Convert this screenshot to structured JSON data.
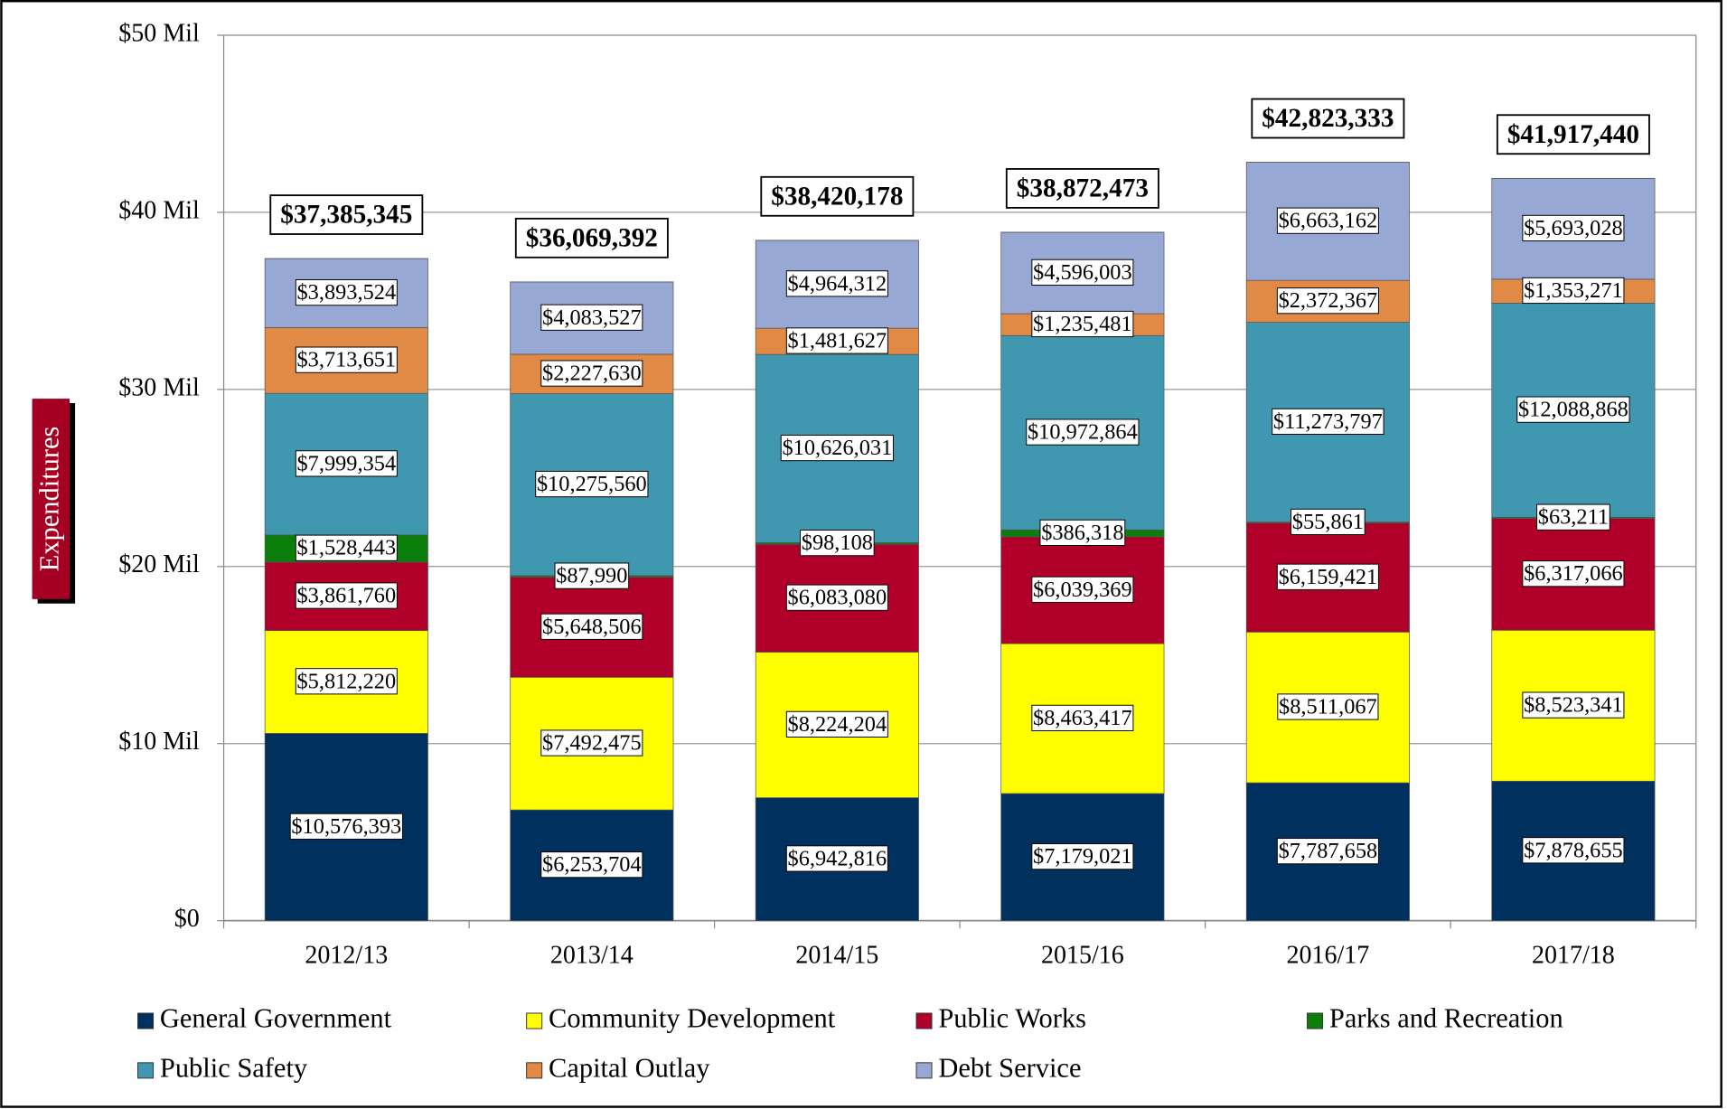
{
  "chart_data": {
    "type": "stacked_bar",
    "y_label": "Expenditures",
    "categories": [
      "2012/13",
      "2013/14",
      "2014/15",
      "2015/16",
      "2016/17",
      "2017/18"
    ],
    "ylim": [
      0,
      50000000
    ],
    "yticks": [
      {
        "value": 0,
        "label": "$0"
      },
      {
        "value": 10000000,
        "label": "$10 Mil"
      },
      {
        "value": 20000000,
        "label": "$20 Mil"
      },
      {
        "value": 30000000,
        "label": "$30 Mil"
      },
      {
        "value": 40000000,
        "label": "$40 Mil"
      },
      {
        "value": 50000000,
        "label": "$50 Mil"
      }
    ],
    "grid": true,
    "legend": "bottom",
    "series": [
      {
        "name": "General Government",
        "color": "#00305e",
        "values": [
          10576393,
          6253704,
          6942816,
          7179021,
          7787658,
          7878655
        ],
        "value_labels": [
          "$10,576,393",
          "$6,253,704",
          "$6,942,816",
          "$7,179,021",
          "$7,787,658",
          "$7,878,655"
        ]
      },
      {
        "name": "Community Development",
        "color": "#ffff00",
        "values": [
          5812220,
          7492475,
          8224204,
          8463417,
          8511067,
          8523341
        ],
        "value_labels": [
          "$5,812,220",
          "$7,492,475",
          "$8,224,204",
          "$8,463,417",
          "$8,511,067",
          "$8,523,341"
        ]
      },
      {
        "name": "Public Works",
        "color": "#b0002a",
        "values": [
          3861760,
          5648506,
          6083080,
          6039369,
          6159421,
          6317066
        ],
        "value_labels": [
          "$3,861,760",
          "$5,648,506",
          "$6,083,080",
          "$6,039,369",
          "$6,159,421",
          "$6,317,066"
        ]
      },
      {
        "name": "Parks and Recreation",
        "color": "#0a7d0a",
        "values": [
          1528443,
          87990,
          98108,
          386318,
          55861,
          63211
        ],
        "value_labels": [
          "$1,528,443",
          "$87,990",
          "$98,108",
          "$386,318",
          "$55,861",
          "$63,211"
        ]
      },
      {
        "name": "Public Safety",
        "color": "#3f97b0",
        "values": [
          7999354,
          10275560,
          10626031,
          10972864,
          11273797,
          12088868
        ],
        "value_labels": [
          "$7,999,354",
          "$10,275,560",
          "$10,626,031",
          "$10,972,864",
          "$11,273,797",
          "$12,088,868"
        ]
      },
      {
        "name": "Capital Outlay",
        "color": "#e08a45",
        "values": [
          3713651,
          2227630,
          1481627,
          1235481,
          2372367,
          1353271
        ],
        "value_labels": [
          "$3,713,651",
          "$2,227,630",
          "$1,481,627",
          "$1,235,481",
          "$2,372,367",
          "$1,353,271"
        ]
      },
      {
        "name": "Debt Service",
        "color": "#97a8d4",
        "values": [
          3893524,
          4083527,
          4964312,
          4596003,
          6663162,
          5693028
        ],
        "value_labels": [
          "$3,893,524",
          "$4,083,527",
          "$4,964,312",
          "$4,596,003",
          "$6,663,162",
          "$5,693,028"
        ]
      }
    ],
    "totals": [
      37385345,
      36069392,
      38420178,
      38872473,
      42823333,
      41917440
    ],
    "total_labels": [
      "$37,385,345",
      "$36,069,392",
      "$38,420,178",
      "$38,872,473",
      "$42,823,333",
      "$41,917,440"
    ]
  }
}
